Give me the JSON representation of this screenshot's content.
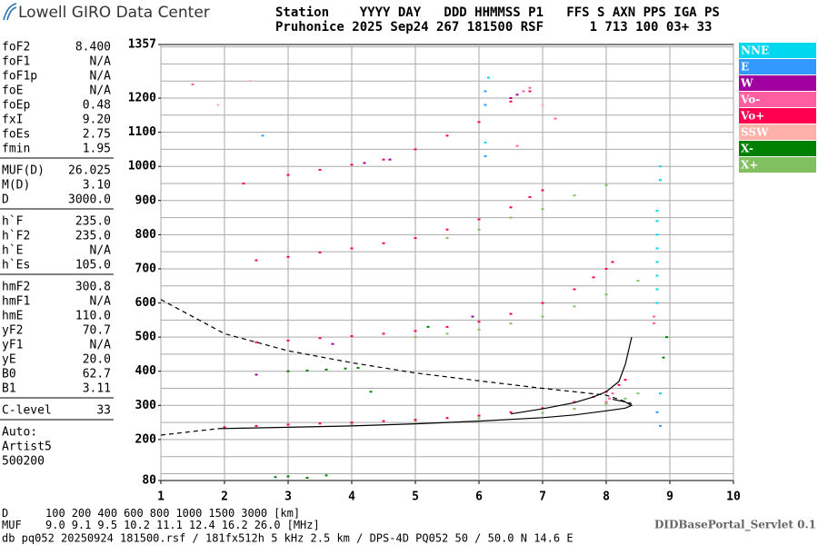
{
  "header": {
    "logo": "Lowell GIRO Data Center",
    "line1": "Station    YYYY DAY   DDD HHMMSS P1   FFS S AXN PPS IGA PS",
    "line2": "Pruhonice 2025 Sep24 267 181500 RSF      1 713 100 03+ 33"
  },
  "params": [
    [
      [
        "foF2",
        "8.400"
      ],
      [
        "foF1",
        "N/A"
      ],
      [
        "foF1p",
        "N/A"
      ],
      [
        "foE",
        "N/A"
      ],
      [
        "foEp",
        "0.48"
      ],
      [
        "fxI",
        "9.20"
      ],
      [
        "foEs",
        "2.75"
      ],
      [
        "fmin",
        "1.95"
      ]
    ],
    [
      [
        "MUF(D)",
        "26.025"
      ],
      [
        "M(D)",
        "3.10"
      ],
      [
        "D",
        "3000.0"
      ]
    ],
    [
      [
        "h`F",
        "235.0"
      ],
      [
        "h`F2",
        "235.0"
      ],
      [
        "h`E",
        "N/A"
      ],
      [
        "h`Es",
        "105.0"
      ]
    ],
    [
      [
        "hmF2",
        "300.8"
      ],
      [
        "hmF1",
        "N/A"
      ],
      [
        "hmE",
        "110.0"
      ],
      [
        "yF2",
        "70.7"
      ],
      [
        "yF1",
        "N/A"
      ],
      [
        "yE",
        "20.0"
      ],
      [
        "B0",
        "62.7"
      ],
      [
        "B1",
        "3.11"
      ]
    ],
    [
      [
        "C-level",
        "33"
      ]
    ],
    [
      [
        "Auto:"
      ],
      [
        "Artist5"
      ],
      [
        "500200"
      ]
    ]
  ],
  "muf_table": [
    [
      "D",
      "100",
      "200",
      "400",
      "600",
      "800",
      "1000",
      "1500",
      "3000",
      "[km]"
    ],
    [
      "MUF",
      "9.0",
      "9.1",
      "9.5",
      "10.2",
      "11.1",
      "12.4",
      "16.2",
      "26.0",
      "[MHz]"
    ]
  ],
  "footer": "db pq052 20250924 181500.rsf / 181fx512h 5 kHz 2.5 km / DPS-4D PQ052 50 / 50.0 N 14.6 E",
  "servlet": "DIDBasePortal_Servlet 0.1",
  "chart_data": {
    "type": "ionogram",
    "xlim": [
      1,
      10
    ],
    "ylim": [
      80,
      1357
    ],
    "xticks": [
      1,
      2,
      3,
      4,
      5,
      6,
      7,
      8,
      9,
      10
    ],
    "yticks": [
      80,
      200,
      300,
      400,
      500,
      600,
      700,
      800,
      900,
      1000,
      1100,
      1200,
      1357
    ],
    "ygrid": [
      100,
      150,
      200,
      250,
      300,
      350,
      400,
      450,
      500,
      550,
      600,
      650,
      700,
      750,
      800,
      850,
      900,
      950,
      1000,
      1050,
      1100,
      1150,
      1200,
      1250,
      1300,
      1350
    ],
    "grid": true,
    "legend": "right",
    "series": [
      {
        "name": "NNE",
        "color": "#00d8f0",
        "x": [
          8.8,
          8.8,
          8.8,
          8.8,
          8.8,
          8.8,
          8.8,
          8.8,
          8.85,
          8.85,
          6.1,
          6.15,
          8.85
        ],
        "y": [
          600,
          640,
          680,
          720,
          760,
          800,
          840,
          870,
          960,
          1000,
          1070,
          1260,
          335
        ]
      },
      {
        "name": "E",
        "color": "#3399ff",
        "x": [
          6.1,
          6.1,
          8.8,
          8.85,
          2.6,
          6.1
        ],
        "y": [
          1220,
          1180,
          280,
          240,
          1090,
          1030
        ]
      },
      {
        "name": "W",
        "color": "#a000a0",
        "x": [
          4.2,
          4.6,
          6.5,
          6.6,
          3.7,
          5.9,
          2.5
        ],
        "y": [
          1010,
          1020,
          1200,
          1210,
          480,
          560,
          390
        ]
      },
      {
        "name": "Vo-",
        "color": "#ff5fa0",
        "x": [
          6.7,
          6.8,
          8.0,
          8.05,
          8.1,
          8.75,
          8.75,
          1.5,
          6.6,
          7.2
        ],
        "y": [
          1220,
          1230,
          310,
          320,
          335,
          560,
          540,
          1240,
          1060,
          1140
        ]
      },
      {
        "name": "Vo+",
        "color": "#ff0050",
        "x": [
          2.0,
          2.5,
          3.0,
          3.5,
          4.0,
          4.5,
          5.0,
          5.5,
          6.0,
          6.5,
          7.0,
          7.5,
          7.8,
          8.0,
          8.2,
          8.3,
          2.5,
          3.0,
          3.5,
          4.0,
          4.5,
          5.0,
          5.5,
          6.0,
          6.5,
          7.0,
          7.5,
          7.8,
          8.0,
          8.1,
          2.5,
          3.0,
          3.5,
          4.0,
          4.5,
          5.0,
          5.5,
          6.0,
          6.5,
          6.8,
          7.0,
          2.3,
          3.0,
          3.5,
          4.0,
          4.5,
          5.0,
          5.5,
          6.0,
          6.5,
          6.8
        ],
        "y": [
          236,
          240,
          244,
          247,
          250,
          254,
          258,
          263,
          270,
          280,
          292,
          310,
          325,
          340,
          360,
          375,
          485,
          490,
          497,
          503,
          510,
          518,
          530,
          545,
          568,
          600,
          640,
          675,
          700,
          720,
          725,
          735,
          748,
          760,
          775,
          790,
          815,
          845,
          880,
          910,
          930,
          950,
          975,
          990,
          1005,
          1020,
          1050,
          1090,
          1130,
          1190,
          1220
        ]
      },
      {
        "name": "SSW",
        "color": "#ffb0a8",
        "x": [
          2.4,
          7.0,
          1.9
        ],
        "y": [
          1250,
          1180,
          1180
        ]
      },
      {
        "name": "X-",
        "color": "#008000",
        "x": [
          3.0,
          3.3,
          3.6,
          3.9,
          4.1,
          2.8,
          3.0,
          3.3,
          3.6,
          4.3,
          5.2,
          8.95,
          8.9
        ],
        "y": [
          400,
          402,
          405,
          408,
          410,
          90,
          92,
          88,
          95,
          340,
          530,
          500,
          440
        ]
      },
      {
        "name": "X+",
        "color": "#80c060",
        "x": [
          4,
          5,
          6,
          7,
          7.5,
          8,
          8.3,
          8.5,
          5,
          5.5,
          6,
          6.5,
          7,
          7.5,
          8,
          8.5,
          5.5,
          6,
          6.5,
          7,
          7.5,
          8
        ],
        "y": [
          245,
          252,
          262,
          278,
          290,
          305,
          320,
          335,
          500,
          510,
          522,
          540,
          560,
          590,
          625,
          665,
          790,
          815,
          850,
          875,
          915,
          945
        ]
      }
    ],
    "lines": [
      {
        "color": "#000000",
        "dashed": true,
        "x": [
          1.0,
          1.9
        ],
        "y": [
          213,
          232
        ]
      },
      {
        "color": "#000000",
        "dashed": false,
        "x": [
          1.9,
          3,
          4,
          5,
          6,
          7,
          7.5,
          8,
          8.3,
          8.4,
          8.3,
          8.1
        ],
        "y": [
          232,
          236,
          240,
          246,
          254,
          264,
          272,
          284,
          292,
          300,
          310,
          318
        ]
      },
      {
        "color": "#000000",
        "dashed": false,
        "x": [
          6.5,
          7,
          7.5,
          7.8,
          8.0,
          8.2,
          8.3,
          8.4
        ],
        "y": [
          275,
          290,
          308,
          325,
          340,
          370,
          420,
          500
        ]
      },
      {
        "color": "#000000",
        "dashed": true,
        "x": [
          1,
          2,
          3,
          4,
          5,
          6,
          7,
          8,
          8.4
        ],
        "y": [
          610,
          510,
          460,
          425,
          395,
          372,
          350,
          330,
          305
        ]
      }
    ]
  }
}
